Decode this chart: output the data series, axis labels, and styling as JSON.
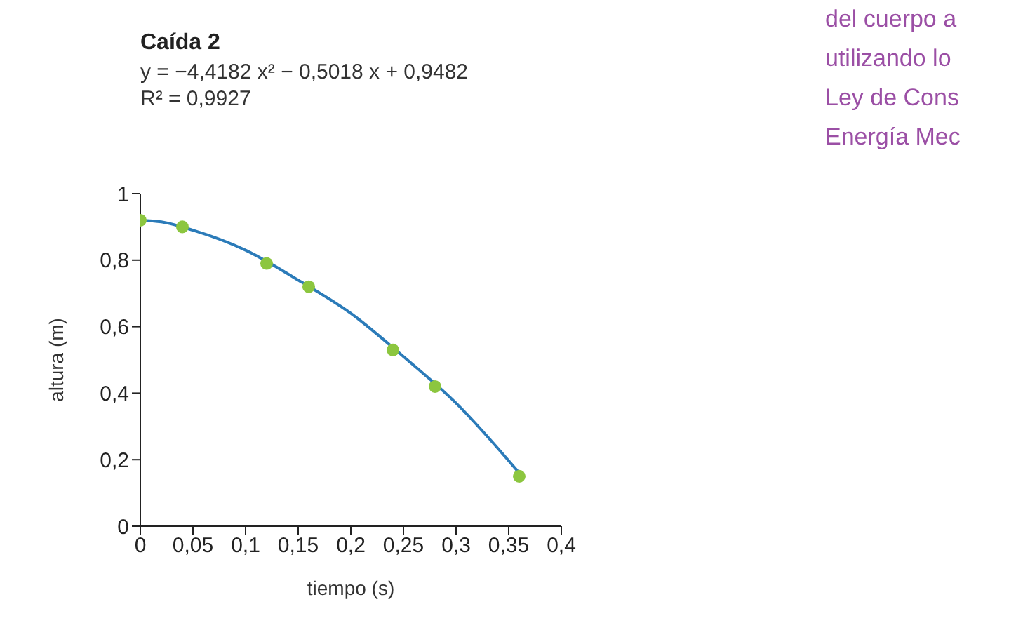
{
  "chart_data": {
    "type": "scatter",
    "title": "Caída 2",
    "annotations": [
      "y = −4,4182 x² − 0,5018 x + 0,9482",
      "R² = 0,9927",
      "del cuerpo a",
      "utilizando lo",
      "Ley de Cons",
      "Energía Mec"
    ],
    "xlabel": "tiempo (s)",
    "ylabel": "altura (m)",
    "series": [
      {
        "type": "line",
        "color": "#2b7bb9",
        "marker": "none",
        "x": [
          0,
          0.02,
          0.05,
          0.1,
          0.15,
          0.2,
          0.25,
          0.3,
          0.36
        ],
        "values": [
          0.92,
          0.915,
          0.89,
          0.83,
          0.74,
          0.64,
          0.51,
          0.37,
          0.16
        ]
      },
      {
        "color": "#8cc63f",
        "marker": "circle",
        "x": [
          0,
          0.04,
          0.12,
          0.16,
          0.24,
          0.28,
          0.36
        ],
        "values": [
          0.92,
          0.9,
          0.79,
          0.72,
          0.53,
          0.42,
          0.15
        ]
      }
    ],
    "xlim": [
      0,
      0.4
    ],
    "ylim": [
      0,
      1
    ],
    "xticks": [
      0,
      {
        "value": 0.05,
        "label": "0,05"
      },
      {
        "value": 0.1,
        "label": "0,1"
      },
      {
        "value": 0.15,
        "label": "0,15"
      },
      {
        "value": 0.2,
        "label": "0,2"
      },
      {
        "value": 0.25,
        "label": "0,25"
      },
      {
        "value": 0.3,
        "label": "0,3"
      },
      {
        "value": 0.35,
        "label": "0,35"
      },
      {
        "value": 0.4,
        "label": "0,4"
      }
    ],
    "yticks": [
      0,
      {
        "value": 0.2,
        "label": "0,2"
      },
      {
        "value": 0.4,
        "label": "0,4"
      },
      {
        "value": 0.6,
        "label": "0,6"
      },
      {
        "value": 0.8,
        "label": "0,8"
      },
      1
    ],
    "grid": false
  }
}
